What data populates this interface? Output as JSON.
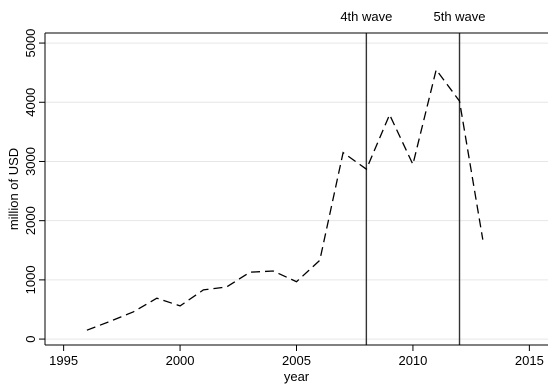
{
  "chart_data": {
    "type": "line",
    "title": "",
    "xlabel": "year",
    "ylabel": "million of USD",
    "xlim": [
      1994.2,
      2015.8
    ],
    "ylim": [
      -100,
      5170
    ],
    "xticks": [
      1995,
      2000,
      2005,
      2010,
      2015
    ],
    "yticks": [
      0,
      1000,
      2000,
      3000,
      4000,
      5000
    ],
    "grid": "horizontal",
    "legend": "none",
    "series": [
      {
        "x": [
          1996,
          1997,
          1998,
          1999,
          2000,
          2001,
          2002,
          2003,
          2004,
          2005,
          2006,
          2007,
          2008,
          2009,
          2010,
          2011,
          2012,
          2013
        ],
        "y": [
          150,
          300,
          460,
          690,
          560,
          830,
          880,
          1130,
          1150,
          970,
          1330,
          3150,
          2870,
          3790,
          2950,
          4550,
          4020,
          1680
        ]
      }
    ],
    "annotations": [
      {
        "x": 2008,
        "label": "4th wave"
      },
      {
        "x": 2012,
        "label": "5th wave"
      }
    ]
  }
}
